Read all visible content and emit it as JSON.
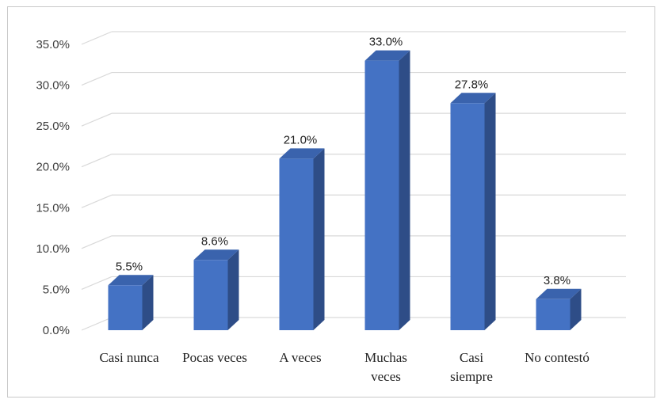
{
  "chart_data": {
    "type": "bar",
    "categories": [
      "Casi nunca",
      "Pocas veces",
      "A veces",
      "Muchas veces",
      "Casi siempre",
      "No contestó"
    ],
    "category_lines": [
      [
        "Casi nunca"
      ],
      [
        "Pocas veces"
      ],
      [
        "A veces"
      ],
      [
        "Muchas",
        "veces"
      ],
      [
        "Casi",
        "siempre"
      ],
      [
        "No contestó"
      ]
    ],
    "values": [
      5.5,
      8.6,
      21.0,
      33.0,
      27.8,
      3.8
    ],
    "data_labels": [
      "5.5%",
      "8.6%",
      "21.0%",
      "33.0%",
      "27.8%",
      "3.8%"
    ],
    "y_ticks": [
      "0.0%",
      "5.0%",
      "10.0%",
      "15.0%",
      "20.0%",
      "25.0%",
      "30.0%",
      "35.0%"
    ],
    "ylim": [
      0,
      35
    ],
    "grid": true,
    "style": "3d-column",
    "colors": {
      "front": "#4472c4",
      "side": "#2e4d87",
      "top": "#3a63ad",
      "grid": "#d9d9d9"
    }
  }
}
